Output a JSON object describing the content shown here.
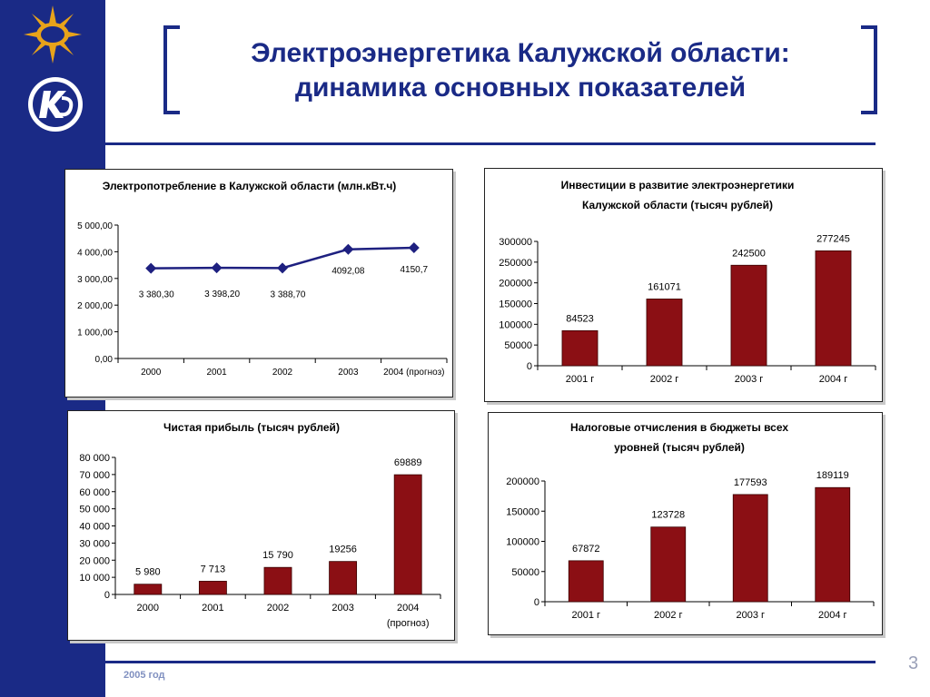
{
  "slide": {
    "title_line1": "Электроэнергетика Калужской области:",
    "title_line2": "динамика основных показателей",
    "footer_year": "2005 год",
    "page_number": "3"
  },
  "colors": {
    "primary": "#1a2a86",
    "bar": "#8b0f14",
    "line": "#1e2080"
  },
  "chart_data": [
    {
      "id": "consumption",
      "type": "line",
      "title": "Электропотребление в Калужской области (млн.кВт.ч)",
      "categories": [
        "2000",
        "2001",
        "2002",
        "2003",
        "2004 (прогноз)"
      ],
      "values": [
        3380.3,
        3398.2,
        3388.7,
        4092.08,
        4150.7
      ],
      "value_labels": [
        "3 380,30",
        "3 398,20",
        "3 388,70",
        "4092,08",
        "4150,7"
      ],
      "y_ticks": [
        "0,00",
        "1 000,00",
        "2 000,00",
        "3 000,00",
        "4 000,00",
        "5 000,00"
      ],
      "ylim": [
        0,
        5000
      ]
    },
    {
      "id": "investments",
      "type": "bar",
      "title_line1": "Инвестиции в развитие электроэнергетики",
      "title_line2": "Калужской области (тысяч рублей)",
      "categories": [
        "2001 г",
        "2002 г",
        "2003 г",
        "2004 г"
      ],
      "values": [
        84523,
        161071,
        242500,
        277245
      ],
      "value_labels": [
        "84523",
        "161071",
        "242500",
        "277245"
      ],
      "y_ticks": [
        "0",
        "50000",
        "100000",
        "150000",
        "200000",
        "250000",
        "300000"
      ],
      "ylim": [
        0,
        300000
      ]
    },
    {
      "id": "profit",
      "type": "bar",
      "title": "Чистая прибыль (тысяч рублей)",
      "categories": [
        "2000",
        "2001",
        "2002",
        "2003",
        "2004"
      ],
      "category_sublabels": [
        "",
        "",
        "",
        "",
        "(прогноз)"
      ],
      "values": [
        5980,
        7713,
        15790,
        19256,
        69889
      ],
      "value_labels": [
        "5 980",
        "7 713",
        "15 790",
        "19256",
        "69889"
      ],
      "y_ticks": [
        "0",
        "10 000",
        "20 000",
        "30 000",
        "40 000",
        "50 000",
        "60 000",
        "70 000",
        "80 000"
      ],
      "ylim": [
        0,
        80000
      ]
    },
    {
      "id": "taxes",
      "type": "bar",
      "title_line1": "Налоговые отчисления  в бюджеты всех",
      "title_line2": "уровней (тысяч рублей)",
      "categories": [
        "2001 г",
        "2002 г",
        "2003 г",
        "2004 г"
      ],
      "values": [
        67872,
        123728,
        177593,
        189119
      ],
      "value_labels": [
        "67872",
        "123728",
        "177593",
        "189119"
      ],
      "y_ticks": [
        "0",
        "50000",
        "100000",
        "150000",
        "200000"
      ],
      "ylim": [
        0,
        200000
      ]
    }
  ]
}
